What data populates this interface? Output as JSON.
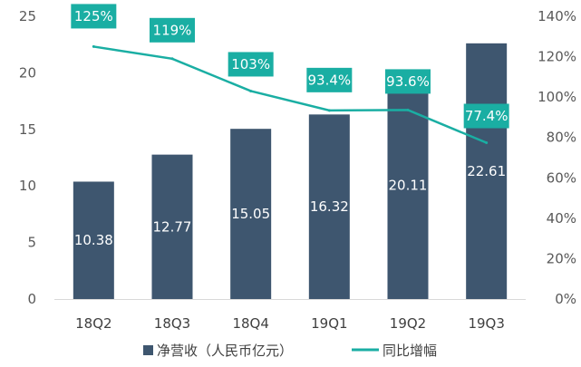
{
  "chart_data": {
    "type": "bar",
    "categories": [
      "18Q2",
      "18Q3",
      "18Q4",
      "19Q1",
      "19Q2",
      "19Q3"
    ],
    "series": [
      {
        "name": "净营收（人民币亿元）",
        "type": "bar",
        "axis": "left",
        "values": [
          10.38,
          12.77,
          15.05,
          16.32,
          20.11,
          22.61
        ],
        "labels": [
          "10.38",
          "12.77",
          "15.05",
          "16.32",
          "20.11",
          "22.61"
        ],
        "color": "#3e566f"
      },
      {
        "name": "同比增幅",
        "type": "line",
        "axis": "right",
        "values": [
          125,
          119,
          103,
          93.4,
          93.6,
          77.4
        ],
        "labels": [
          "125%",
          "119%",
          "103%",
          "93.4%",
          "93.6%",
          "77.4%"
        ],
        "color": "#1aaea3"
      }
    ],
    "ylim_left": [
      0,
      25
    ],
    "yticks_left": [
      "0",
      "5",
      "10",
      "15",
      "20",
      "25"
    ],
    "ylim_right": [
      0,
      140
    ],
    "yticks_right": [
      "0%",
      "20%",
      "40%",
      "60%",
      "80%",
      "100%",
      "120%",
      "140%"
    ],
    "grid": false,
    "legend_position": "bottom"
  }
}
